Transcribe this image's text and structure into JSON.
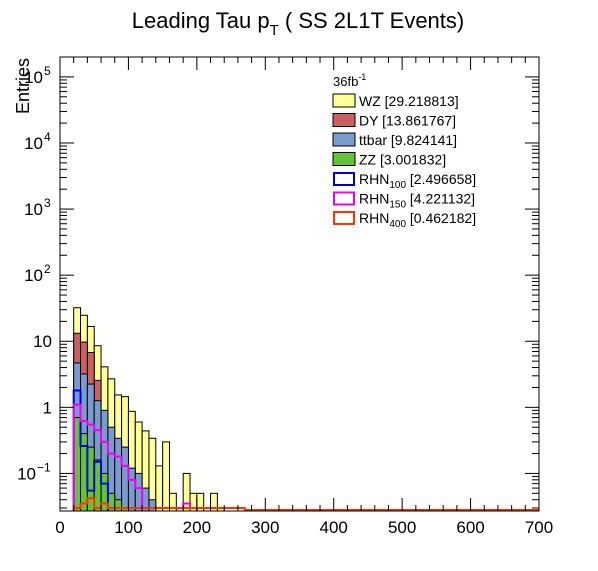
{
  "chart_data": {
    "type": "histogram",
    "title": "Leading Tau p",
    "title_sub": "T",
    "title_suffix": " ( SS 2L1T Events)",
    "ylabel": "Entries",
    "xlabel": "",
    "x_range": [
      0,
      700
    ],
    "y_range": [
      0.027,
      200000
    ],
    "y_scale": "log",
    "bin_width": 10,
    "grid": false,
    "legend_position": "top-right",
    "legend_header": "36fb",
    "legend_header_sup": "-1",
    "x_ticks": [
      0,
      100,
      200,
      300,
      400,
      500,
      600,
      700
    ],
    "x_tick_labels": [
      "0",
      "100",
      "200",
      "300",
      "400",
      "500",
      "600",
      "700"
    ],
    "y_ticks": [
      {
        "value": 0.1,
        "base": "10",
        "exp": "−1"
      },
      {
        "value": 1,
        "base": "1",
        "exp": ""
      },
      {
        "value": 10,
        "base": "10",
        "exp": ""
      },
      {
        "value": 100,
        "base": "10",
        "exp": "2"
      },
      {
        "value": 1000,
        "base": "10",
        "exp": "3"
      },
      {
        "value": 10000,
        "base": "10",
        "exp": "4"
      },
      {
        "value": 100000,
        "base": "10",
        "exp": "5"
      }
    ],
    "stack_series": [
      {
        "name": "ZZ",
        "legend": "ZZ [3.001832]",
        "color": "#63c438",
        "bin_starts": [
          20,
          30,
          40,
          50,
          60,
          70,
          80,
          90
        ],
        "values": [
          0.7,
          0.4,
          0.25,
          0.16,
          0.1,
          0.05,
          0.04,
          0.03
        ]
      },
      {
        "name": "ttbar",
        "legend": "ttbar [9.824141]",
        "color": "#7a9bce",
        "bin_starts": [
          20,
          30,
          40,
          50,
          60,
          70,
          80,
          90,
          100,
          110,
          120,
          130
        ],
        "values": [
          4.0,
          2.8,
          2.0,
          1.1,
          0.8,
          0.45,
          0.3,
          0.22,
          0.12,
          0.1,
          0.06,
          0.04
        ]
      },
      {
        "name": "DY",
        "legend": "DY [13.861767]",
        "color": "#cc5f5f",
        "bin_starts": [
          20,
          30,
          40,
          50
        ],
        "values": [
          8.5,
          6.5,
          4.5,
          1.3
        ]
      },
      {
        "name": "WZ",
        "legend": "WZ [29.218813]",
        "color": "#ffff99",
        "bin_starts": [
          20,
          30,
          40,
          50,
          60,
          70,
          80,
          90,
          100,
          110,
          120,
          130,
          140,
          150,
          160,
          170,
          180,
          190,
          200,
          210,
          220,
          230
        ],
        "values": [
          19,
          15,
          10,
          6,
          3.2,
          2.2,
          1.2,
          1.2,
          0.75,
          0.5,
          0.38,
          0.3,
          0.13,
          0.3,
          0.05,
          0.03,
          0.1,
          0.05,
          0.05,
          0.03,
          0.05,
          0.03
        ]
      }
    ],
    "line_series": [
      {
        "name": "RHN100",
        "legend_base": "RHN",
        "legend_sub": "100",
        "legend_suffix": " [2.496658]",
        "color": "#0000dd",
        "bin_starts": [
          20,
          30,
          40,
          50,
          60
        ],
        "values": [
          1.8,
          0.26,
          0.055,
          0.15,
          0.07
        ]
      },
      {
        "name": "RHN150",
        "legend_base": "RHN",
        "legend_sub": "150",
        "legend_suffix": " [4.221132]",
        "color": "#ee00ee",
        "bin_starts": [
          20,
          30,
          40,
          50,
          60,
          70,
          80,
          90,
          100,
          110,
          120,
          130,
          140,
          150,
          160,
          170,
          180,
          190
        ],
        "values": [
          1.1,
          0.62,
          0.55,
          0.45,
          0.3,
          0.2,
          0.18,
          0.13,
          0.08,
          0.06,
          0.03,
          0.03,
          0.03,
          0.03,
          0.03,
          0.03,
          0.035,
          0.03
        ]
      },
      {
        "name": "RHN400",
        "legend_base": "RHN",
        "legend_sub": "400",
        "legend_suffix": " [0.462182]",
        "color": "#ff3300",
        "bin_starts": [
          20,
          30,
          40,
          50,
          60,
          70,
          80,
          90,
          100,
          110,
          120,
          130,
          140,
          150,
          160,
          170,
          180,
          190,
          200,
          210,
          220,
          230,
          240,
          250,
          260
        ],
        "values": [
          0.03,
          0.035,
          0.042,
          0.03,
          0.035,
          0.03,
          0.03,
          0.03,
          0.03,
          0.03,
          0.03,
          0.03,
          0.03,
          0.03,
          0.03,
          0.03,
          0.03,
          0.03,
          0.03,
          0.03,
          0.03,
          0.03,
          0.03,
          0.03,
          0.03
        ]
      }
    ]
  }
}
